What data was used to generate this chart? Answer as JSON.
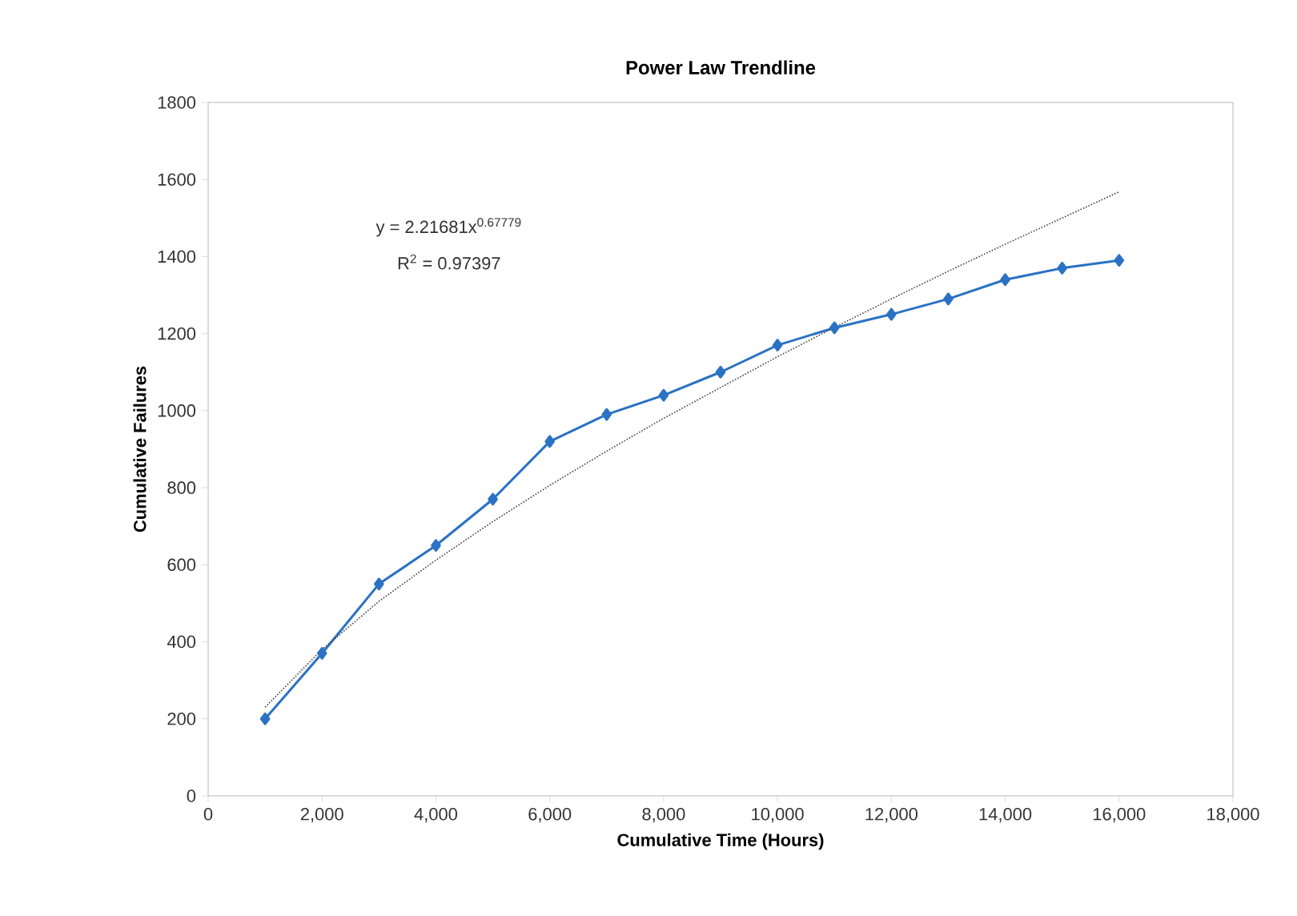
{
  "chart_data": {
    "type": "line",
    "title": "Power Law Trendline",
    "xlabel": "Cumulative Time (Hours)",
    "ylabel": "Cumulative Failures",
    "annotations": [
      "y = 2.21681x$^{0.67779}$",
      "R$^{2}$ = 0.97397"
    ],
    "series": [
      {
        "color": "#2a72c4",
        "marker": "diamond",
        "line_style": "solid",
        "x": [
          1000,
          2000,
          3000,
          4000,
          5000,
          6000,
          7000,
          8000,
          9000,
          10000,
          11000,
          12000,
          13000,
          14000,
          15000,
          16000
        ],
        "values": [
          200,
          370,
          550,
          650,
          770,
          920,
          990,
          1040,
          1100,
          1170,
          1215,
          1250,
          1290,
          1340,
          1370,
          1390
        ]
      },
      {
        "color": "#404040",
        "marker": "none",
        "line_style": "dotted",
        "x": [
          1000,
          2000,
          3000,
          4000,
          5000,
          6000,
          7000,
          8000,
          9000,
          10000,
          11000,
          12000,
          13000,
          14000,
          15000,
          16000
        ],
        "values": [
          230,
          380,
          505,
          612,
          712,
          806,
          895,
          980,
          1060,
          1140,
          1216,
          1290,
          1362,
          1432,
          1500,
          1568
        ]
      }
    ],
    "xlim": [
      0,
      18000
    ],
    "ylim": [
      0,
      1800
    ],
    "xticks": [
      0,
      {
        "value": 2000,
        "label": "2,000"
      },
      {
        "value": 4000,
        "label": "4,000"
      },
      {
        "value": 6000,
        "label": "6,000"
      },
      {
        "value": 8000,
        "label": "8,000"
      },
      {
        "value": 10000,
        "label": "10,000"
      },
      {
        "value": 12000,
        "label": "12,000"
      },
      {
        "value": 14000,
        "label": "14,000"
      },
      {
        "value": 16000,
        "label": "16,000"
      },
      {
        "value": 18000,
        "label": "18,000"
      }
    ],
    "yticks": [
      0,
      200,
      400,
      600,
      800,
      1000,
      1200,
      1400,
      1600,
      1800
    ],
    "grid": false
  }
}
